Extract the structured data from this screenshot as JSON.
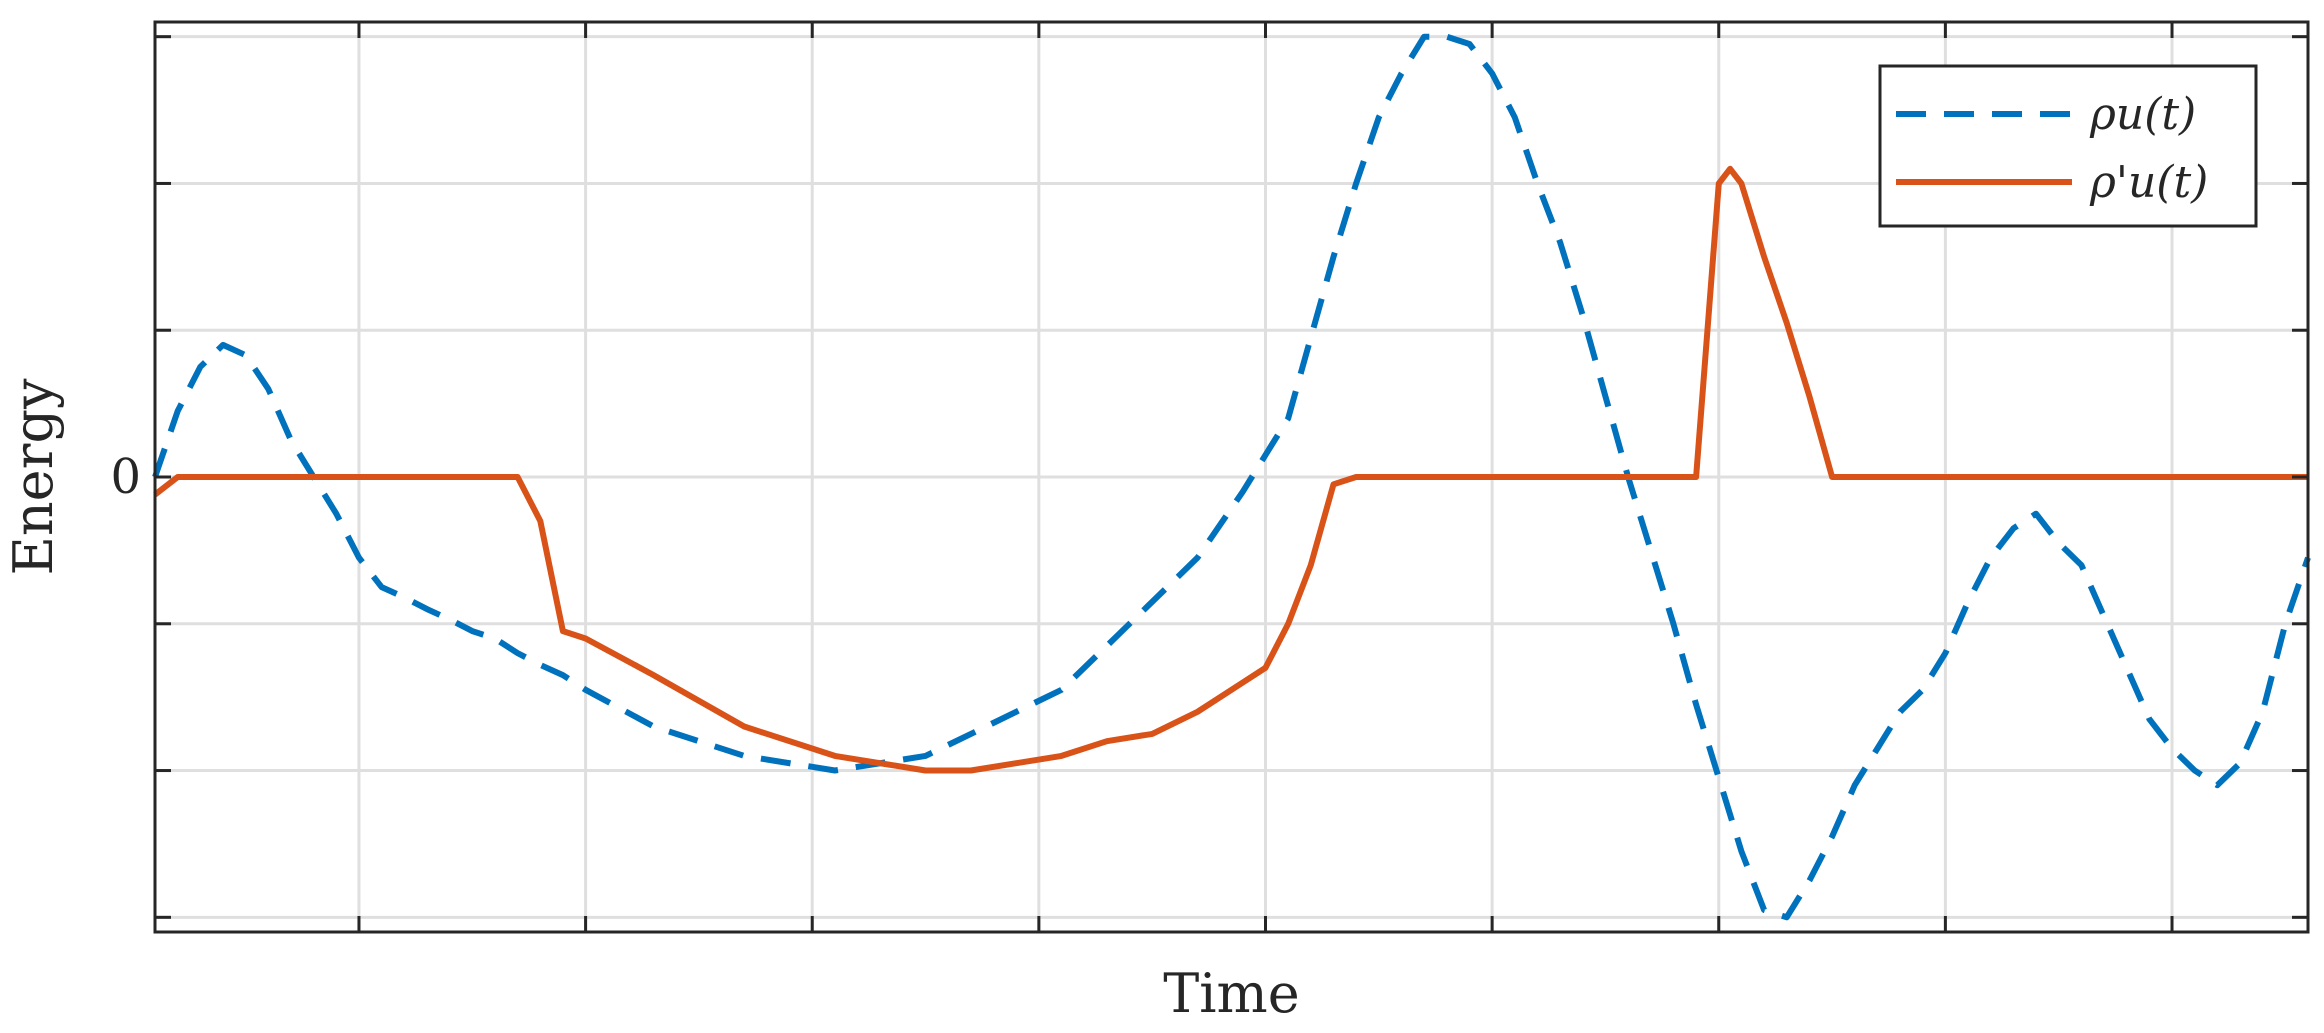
{
  "chart_data": {
    "type": "line",
    "title": "",
    "xlabel": "Time",
    "ylabel": "Energy",
    "xlim": [
      0,
      9.5
    ],
    "ylim": [
      -3.1,
      3.1
    ],
    "x_ticks": [
      0.9,
      1.9,
      2.9,
      3.9,
      4.9,
      5.9,
      6.9,
      7.9,
      8.9
    ],
    "y_ticks": [
      -3,
      -2,
      -1,
      0,
      1,
      2,
      3
    ],
    "y_tick_labels": [
      "",
      "",
      "",
      "0",
      "",
      "",
      ""
    ],
    "grid": true,
    "legend_position": "top-right",
    "series": [
      {
        "name": "ρu(t)",
        "style": "dashed",
        "color": "#0072BD",
        "x": [
          0,
          0.1,
          0.2,
          0.3,
          0.4,
          0.5,
          0.6,
          0.7,
          0.8,
          0.9,
          1.0,
          1.1,
          1.2,
          1.3,
          1.4,
          1.5,
          1.6,
          1.7,
          1.8,
          1.9,
          2.2,
          2.6,
          3.0,
          3.4,
          3.6,
          3.8,
          4.0,
          4.2,
          4.4,
          4.6,
          4.8,
          5.0,
          5.1,
          5.2,
          5.3,
          5.4,
          5.5,
          5.6,
          5.7,
          5.8,
          5.9,
          6.0,
          6.1,
          6.2,
          6.3,
          6.4,
          6.5,
          6.6,
          6.7,
          6.8,
          6.9,
          7.0,
          7.1,
          7.2,
          7.3,
          7.4,
          7.5,
          7.6,
          7.7,
          7.8,
          7.9,
          8.0,
          8.1,
          8.2,
          8.3,
          8.4,
          8.5,
          8.6,
          8.7,
          8.8,
          8.9,
          9.0,
          9.1,
          9.2,
          9.3,
          9.4,
          9.5
        ],
        "y": [
          0,
          0.45,
          0.75,
          0.9,
          0.83,
          0.6,
          0.25,
          0,
          -0.25,
          -0.55,
          -0.75,
          -0.82,
          -0.9,
          -0.97,
          -1.05,
          -1.1,
          -1.2,
          -1.28,
          -1.35,
          -1.45,
          -1.7,
          -1.9,
          -2.0,
          -1.9,
          -1.75,
          -1.6,
          -1.45,
          -1.15,
          -0.85,
          -0.55,
          -0.1,
          0.4,
          0.95,
          1.5,
          2.0,
          2.45,
          2.75,
          3.0,
          3.0,
          2.95,
          2.75,
          2.45,
          2.0,
          1.6,
          1.1,
          0.55,
          0,
          -0.5,
          -1.0,
          -1.55,
          -2.05,
          -2.55,
          -2.95,
          -3.0,
          -2.75,
          -2.45,
          -2.1,
          -1.85,
          -1.6,
          -1.45,
          -1.2,
          -0.85,
          -0.55,
          -0.35,
          -0.25,
          -0.45,
          -0.6,
          -0.95,
          -1.3,
          -1.65,
          -1.85,
          -2.0,
          -2.1,
          -1.95,
          -1.6,
          -1.0,
          -0.55
        ]
      },
      {
        "name": "ρ'u(t)",
        "style": "solid",
        "color": "#D95319",
        "x": [
          0,
          0.1,
          1.6,
          1.7,
          1.8,
          1.9,
          2.2,
          2.6,
          3.0,
          3.4,
          3.6,
          3.8,
          4.0,
          4.2,
          4.4,
          4.6,
          4.8,
          4.9,
          5.0,
          5.1,
          5.2,
          5.3,
          5.4,
          6.8,
          6.9,
          6.95,
          7.0,
          7.1,
          7.2,
          7.3,
          7.4,
          7.5,
          7.6,
          9.5
        ],
        "y": [
          -0.12,
          0,
          0,
          -0.3,
          -1.05,
          -1.1,
          -1.35,
          -1.7,
          -1.9,
          -2.0,
          -2.0,
          -1.95,
          -1.9,
          -1.8,
          -1.75,
          -1.6,
          -1.4,
          -1.3,
          -1.0,
          -0.6,
          -0.05,
          0,
          0,
          0,
          2.0,
          2.1,
          2.0,
          1.5,
          1.05,
          0.55,
          0,
          0,
          0,
          0
        ]
      }
    ]
  }
}
